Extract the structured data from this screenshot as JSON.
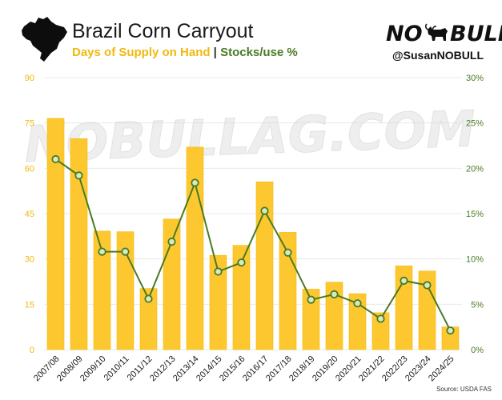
{
  "header": {
    "title": "Brazil Corn Carryout",
    "subtitle_left": "Days of Supply on Hand",
    "subtitle_sep": " | ",
    "subtitle_right": "Stocks/use %",
    "map_icon": "brazil-map-silhouette",
    "logo_left": "NO",
    "logo_right": "BULL",
    "logo_icon": "bull-icon",
    "handle": "@SusanNOBULL"
  },
  "watermark": "NOBULLAG.COM",
  "source": "Source: USDA FAS",
  "colors": {
    "bar": "#FDC82F",
    "bar_edge": "#F2B80F",
    "line": "#4A7A24",
    "marker_fill": "#D6E9C0",
    "left_axis": "#F2B80F",
    "right_axis": "#4A7A24",
    "grid": "#E8E8E8"
  },
  "chart_data": {
    "type": "bar",
    "categories": [
      "2007/08",
      "2008/09",
      "2009/10",
      "2010/11",
      "2011/12",
      "2012/13",
      "2013/14",
      "2014/15",
      "2015/16",
      "2016/17",
      "2017/18",
      "2018/19",
      "2019/20",
      "2020/21",
      "2021/22",
      "2022/23",
      "2023/24",
      "2024/25"
    ],
    "series": [
      {
        "type": "bar",
        "axis": "left",
        "values": [
          76.5,
          69.8,
          39.2,
          39.0,
          20.2,
          43.2,
          67.0,
          31.2,
          34.5,
          55.5,
          38.8,
          20.0,
          22.3,
          18.5,
          12.2,
          27.7,
          26.0,
          7.5
        ]
      },
      {
        "type": "line",
        "axis": "right",
        "values": [
          21.0,
          19.2,
          10.8,
          10.8,
          5.6,
          11.9,
          18.4,
          8.6,
          9.6,
          15.3,
          10.7,
          5.5,
          6.1,
          5.1,
          3.4,
          7.6,
          7.1,
          2.1
        ]
      }
    ],
    "y_left": {
      "ylim": [
        0,
        90
      ],
      "ticks": [
        "0",
        "15",
        "30",
        "45",
        "60",
        "75",
        "90"
      ]
    },
    "y_right": {
      "ylim": [
        0,
        30
      ],
      "ticks": [
        "0%",
        "5%",
        "10%",
        "15%",
        "20%",
        "25%",
        "30%"
      ]
    },
    "grid": true
  }
}
